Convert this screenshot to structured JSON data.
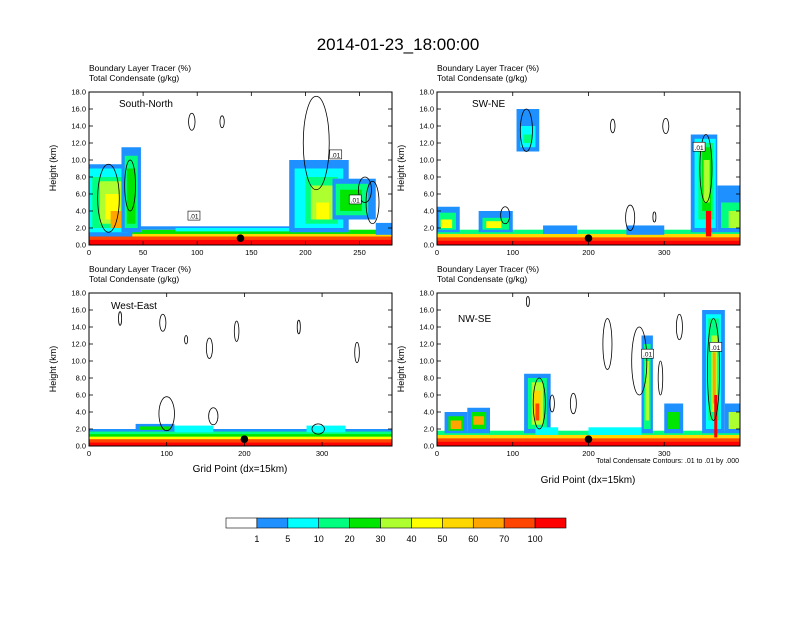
{
  "title": "2014-01-23_18:00:00",
  "colors": [
    "#ffffff",
    "#1e90ff",
    "#00ffff",
    "#00ff7f",
    "#00e600",
    "#adff2f",
    "#ffff00",
    "#ffd700",
    "#ffa500",
    "#ff4500",
    "#ff0000"
  ],
  "colorbar_labels": [
    "1",
    "5",
    "10",
    "20",
    "30",
    "40",
    "50",
    "60",
    "70",
    "100"
  ],
  "footer_note": "Total Condensate Contours: .01 to .01 by .000",
  "chart_data": [
    {
      "type": "heatmap",
      "name": "South-North",
      "label_top": "Boundary Layer Tracer   (%)",
      "label_bottom": "Total Condensate   (g/kg)",
      "ylabel": "Height (km)",
      "xlabel": "",
      "xlim": [
        0,
        280
      ],
      "ylim": [
        0,
        18
      ],
      "xticks": [
        0,
        50,
        100,
        150,
        200,
        250
      ],
      "yticks": [
        "0.0",
        "2.0",
        "4.0",
        "6.0",
        "8.0",
        "10.0",
        "12.0",
        "14.0",
        "16.0",
        "18.0"
      ],
      "marker_x": 140,
      "contour_labels": [
        ".01",
        ".01",
        ".01"
      ]
    },
    {
      "type": "heatmap",
      "name": "SW-NE",
      "label_top": "Boundary Layer Tracer   (%)",
      "label_bottom": "Total Condensate   (g/kg)",
      "ylabel": "Height (km)",
      "xlabel": "",
      "xlim": [
        0,
        400
      ],
      "ylim": [
        0,
        18
      ],
      "xticks": [
        0,
        100,
        200,
        300
      ],
      "yticks": [
        "0.0",
        "2.0",
        "4.0",
        "6.0",
        "8.0",
        "10.0",
        "12.0",
        "14.0",
        "16.0",
        "18.0"
      ],
      "marker_x": 200,
      "contour_labels": [
        ".01"
      ]
    },
    {
      "type": "heatmap",
      "name": "West-East",
      "label_top": "Boundary Layer Tracer   (%)",
      "label_bottom": "Total Condensate   (g/kg)",
      "ylabel": "Height (km)",
      "xlabel": "Grid Point (dx=15km)",
      "xlim": [
        0,
        390
      ],
      "ylim": [
        0,
        18
      ],
      "xticks": [
        0,
        100,
        200,
        300
      ],
      "yticks": [
        "0.0",
        "2.0",
        "4.0",
        "6.0",
        "8.0",
        "10.0",
        "12.0",
        "14.0",
        "16.0",
        "18.0"
      ],
      "marker_x": 200,
      "contour_labels": []
    },
    {
      "type": "heatmap",
      "name": "NW-SE",
      "label_top": "Boundary Layer Tracer   (%)",
      "label_bottom": "Total Condensate   (g/kg)",
      "ylabel": "Height (km)",
      "xlabel": "Grid Point (dx=15km)",
      "xlim": [
        0,
        400
      ],
      "ylim": [
        0,
        18
      ],
      "xticks": [
        0,
        100,
        200,
        300
      ],
      "yticks": [
        "0.0",
        "2.0",
        "4.0",
        "6.0",
        "8.0",
        "10.0",
        "12.0",
        "14.0",
        "16.0",
        "18.0"
      ],
      "marker_x": 200,
      "contour_labels": [
        ".01",
        ".01"
      ]
    }
  ]
}
